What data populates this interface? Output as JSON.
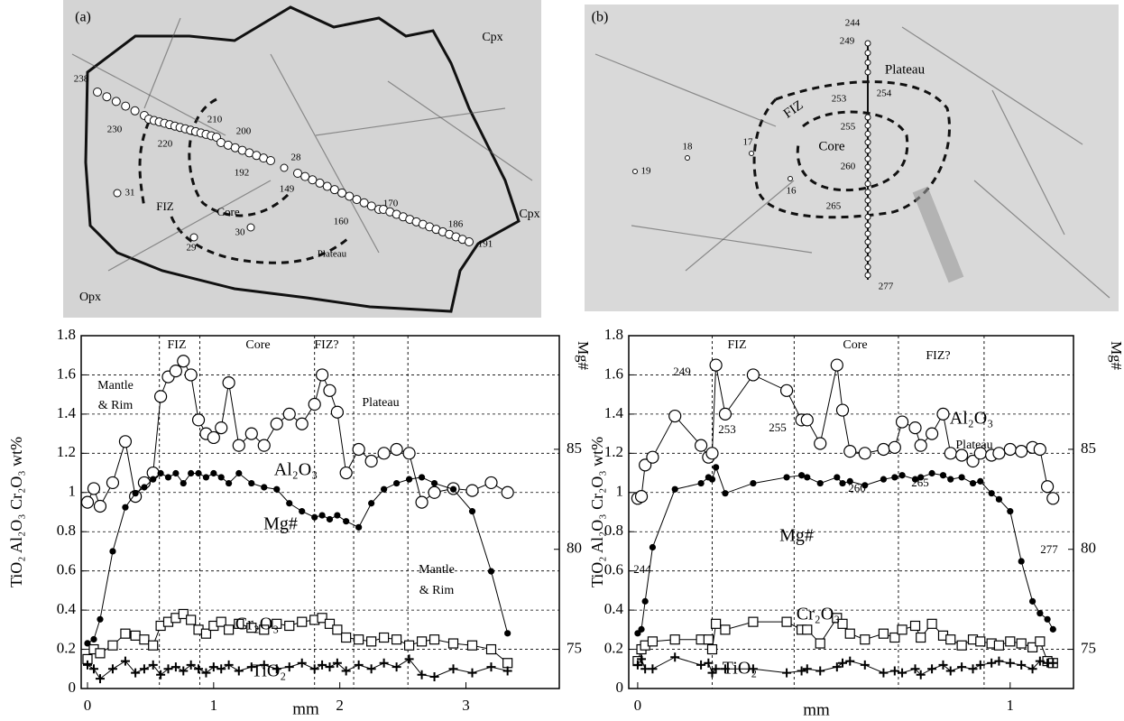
{
  "images": [
    {
      "annotations": [
        "(a)",
        "238",
        "230",
        "220",
        "210",
        "200",
        "192",
        "28",
        "149",
        "160",
        "170",
        "186",
        "191",
        "31",
        "29",
        "30",
        "FIZ",
        "Core",
        "Plateau",
        "Cpx",
        "Cpx",
        "Opx"
      ]
    },
    {
      "annotations": [
        "(b)",
        "244",
        "249",
        "253",
        "254",
        "255",
        "260",
        "265",
        "277",
        "18",
        "17",
        "19",
        "16",
        "Plateau",
        "FIZ",
        "Core"
      ]
    }
  ],
  "chart_data": [
    {
      "type": "line",
      "xlabel": "mm",
      "ylabel": "TiO₂ Al₂O₃ Cr₂O₃ wt%",
      "y2label": "Mg#",
      "xlim": [
        -0.05,
        3.74
      ],
      "xticks": [
        0,
        1,
        2,
        3
      ],
      "ylim": [
        0,
        1.8
      ],
      "yticks": [
        0,
        0.2,
        0.4,
        0.6,
        0.8,
        1,
        1.2,
        1.4,
        1.6,
        1.8
      ],
      "y2lim": [
        73.04,
        90.68
      ],
      "y2ticks": [
        75,
        80,
        85
      ],
      "grid": true,
      "region_lines": [
        0.57,
        0.89,
        1.8,
        2.11,
        2.54
      ],
      "annotations": [
        "FIZ",
        "Core",
        "FIZ?",
        "Mantle",
        "& Rim",
        "Plateau",
        "Mantle",
        "& Rim"
      ],
      "x": [
        0,
        0.05,
        0.1,
        0.2,
        0.3,
        0.38,
        0.45,
        0.52,
        0.58,
        0.64,
        0.7,
        0.76,
        0.82,
        0.88,
        0.94,
        1.0,
        1.06,
        1.12,
        1.2,
        1.3,
        1.4,
        1.5,
        1.6,
        1.7,
        1.8,
        1.86,
        1.92,
        1.98,
        2.05,
        2.15,
        2.25,
        2.35,
        2.45,
        2.55,
        2.65,
        2.75,
        2.9,
        3.05,
        3.2,
        3.33
      ],
      "series": [
        {
          "name": "Al₂O₃",
          "color": "#000000",
          "marker": "circle-open",
          "values": [
            0.95,
            1.02,
            0.93,
            1.05,
            1.26,
            0.98,
            1.05,
            1.1,
            1.49,
            1.59,
            1.62,
            1.67,
            1.6,
            1.37,
            1.3,
            1.28,
            1.33,
            1.56,
            1.24,
            1.3,
            1.24,
            1.35,
            1.4,
            1.35,
            1.45,
            1.6,
            1.52,
            1.41,
            1.1,
            1.22,
            1.16,
            1.2,
            1.22,
            1.2,
            0.95,
            1.0,
            1.02,
            1.01,
            1.05,
            1.0
          ]
        },
        {
          "name": "Mg#",
          "color": "#000000",
          "marker": "dot",
          "axis": "y2",
          "values": [
            75.3,
            75.5,
            76.5,
            79.9,
            82.1,
            82.8,
            83.1,
            83.5,
            83.8,
            83.6,
            83.8,
            83.3,
            83.8,
            83.8,
            83.6,
            83.8,
            83.6,
            83.3,
            83.8,
            83.3,
            83.1,
            83.0,
            82.3,
            81.9,
            81.6,
            81.7,
            81.5,
            81.7,
            81.4,
            81.1,
            82.3,
            83.0,
            83.3,
            83.5,
            83.6,
            83.3,
            83.0,
            81.9,
            78.9,
            75.8
          ]
        },
        {
          "name": "Cr₂O₃",
          "color": "#000000",
          "marker": "square-open",
          "values": [
            0.15,
            0.2,
            0.18,
            0.22,
            0.28,
            0.27,
            0.25,
            0.22,
            0.32,
            0.34,
            0.36,
            0.38,
            0.35,
            0.3,
            0.28,
            0.32,
            0.34,
            0.3,
            0.33,
            0.31,
            0.3,
            0.33,
            0.32,
            0.34,
            0.35,
            0.36,
            0.33,
            0.3,
            0.26,
            0.25,
            0.24,
            0.26,
            0.25,
            0.22,
            0.24,
            0.25,
            0.23,
            0.22,
            0.2,
            0.13
          ]
        },
        {
          "name": "TiO₂",
          "color": "#000000",
          "marker": "plus",
          "values": [
            0.12,
            0.1,
            0.05,
            0.1,
            0.14,
            0.08,
            0.1,
            0.12,
            0.07,
            0.1,
            0.11,
            0.09,
            0.12,
            0.1,
            0.08,
            0.11,
            0.1,
            0.12,
            0.09,
            0.11,
            0.12,
            0.1,
            0.11,
            0.13,
            0.1,
            0.12,
            0.11,
            0.13,
            0.09,
            0.12,
            0.1,
            0.13,
            0.11,
            0.15,
            0.07,
            0.06,
            0.1,
            0.08,
            0.11,
            0.09
          ]
        }
      ]
    },
    {
      "type": "line",
      "xlabel": "mm",
      "ylabel": "TiO₂ Al₂O₃ Cr₂O₃ wt%",
      "y2label": "Mg#",
      "xlim": [
        -0.024,
        1.17
      ],
      "xticks": [
        0,
        1
      ],
      "ylim": [
        0,
        1.8
      ],
      "yticks": [
        0,
        0.2,
        0.4,
        0.6,
        0.8,
        1,
        1.2,
        1.4,
        1.6,
        1.8
      ],
      "y2lim": [
        73.04,
        90.68
      ],
      "y2ticks": [
        75,
        80,
        85
      ],
      "grid": true,
      "region_lines": [
        0.2,
        0.42,
        0.7,
        0.93
      ],
      "annotations": [
        "FIZ",
        "Core",
        "FIZ?",
        "Plateau",
        "244",
        "249",
        "253",
        "255",
        "260",
        "265",
        "277"
      ],
      "x": [
        0,
        0.01,
        0.02,
        0.04,
        0.1,
        0.17,
        0.19,
        0.2,
        0.21,
        0.235,
        0.31,
        0.4,
        0.44,
        0.455,
        0.49,
        0.535,
        0.55,
        0.57,
        0.61,
        0.66,
        0.69,
        0.71,
        0.745,
        0.76,
        0.79,
        0.82,
        0.84,
        0.87,
        0.9,
        0.92,
        0.95,
        0.97,
        1.0,
        1.03,
        1.06,
        1.08,
        1.1,
        1.115
      ],
      "series": [
        {
          "name": "Al₂O₃",
          "color": "#000000",
          "marker": "circle-open",
          "values": [
            0.97,
            0.98,
            1.14,
            1.18,
            1.39,
            1.24,
            1.18,
            1.2,
            1.65,
            1.4,
            1.6,
            1.52,
            1.37,
            1.37,
            1.25,
            1.65,
            1.42,
            1.21,
            1.2,
            1.22,
            1.23,
            1.36,
            1.33,
            1.24,
            1.3,
            1.4,
            1.2,
            1.19,
            1.16,
            1.2,
            1.19,
            1.2,
            1.22,
            1.21,
            1.23,
            1.22,
            1.03,
            0.97
          ]
        },
        {
          "name": "Mg#",
          "color": "#000000",
          "marker": "dot",
          "axis": "y2",
          "values": [
            75.8,
            76.0,
            77.4,
            80.1,
            83.0,
            83.3,
            83.6,
            83.5,
            84.1,
            82.8,
            83.3,
            83.6,
            83.7,
            83.6,
            83.3,
            83.6,
            83.3,
            83.4,
            83.2,
            83.5,
            83.6,
            83.7,
            83.5,
            83.6,
            83.8,
            83.7,
            83.5,
            83.6,
            83.3,
            83.4,
            82.8,
            82.5,
            81.9,
            79.4,
            77.4,
            76.8,
            76.5,
            76.0
          ]
        },
        {
          "name": "Cr₂O₃",
          "color": "#000000",
          "marker": "square-open",
          "values": [
            0.14,
            0.2,
            0.22,
            0.24,
            0.25,
            0.25,
            0.25,
            0.2,
            0.33,
            0.3,
            0.34,
            0.34,
            0.3,
            0.3,
            0.23,
            0.36,
            0.33,
            0.28,
            0.25,
            0.28,
            0.26,
            0.3,
            0.32,
            0.26,
            0.33,
            0.27,
            0.25,
            0.22,
            0.25,
            0.24,
            0.23,
            0.22,
            0.24,
            0.23,
            0.21,
            0.24,
            0.14,
            0.13
          ]
        },
        {
          "name": "TiO₂",
          "color": "#000000",
          "marker": "plus",
          "values": [
            0.12,
            0.15,
            0.1,
            0.1,
            0.16,
            0.12,
            0.13,
            0.08,
            0.1,
            0.1,
            0.1,
            0.08,
            0.09,
            0.1,
            0.09,
            0.11,
            0.13,
            0.14,
            0.12,
            0.08,
            0.09,
            0.08,
            0.1,
            0.07,
            0.1,
            0.12,
            0.09,
            0.11,
            0.1,
            0.12,
            0.13,
            0.14,
            0.13,
            0.12,
            0.1,
            0.14,
            0.13,
            0.13
          ]
        }
      ]
    }
  ]
}
